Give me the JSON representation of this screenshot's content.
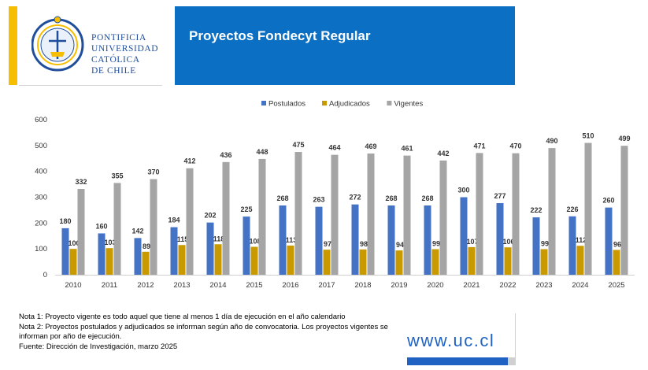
{
  "header": {
    "logo_lines": [
      "PONTIFICIA",
      "UNIVERSIDAD",
      "CATÓLICA",
      "DE CHILE"
    ],
    "title": "Proyectos Fondecyt Regular"
  },
  "chart_data": {
    "type": "bar",
    "title": "",
    "xlabel": "",
    "ylabel": "",
    "ylim": [
      0,
      600
    ],
    "yticks": [
      0,
      100,
      200,
      300,
      400,
      500,
      600
    ],
    "legend_position": "top-center",
    "categories": [
      "2010",
      "2011",
      "2012",
      "2013",
      "2014",
      "2015",
      "2016",
      "2017",
      "2018",
      "2019",
      "2020",
      "2021",
      "2022",
      "2023",
      "2024",
      "2025"
    ],
    "series": [
      {
        "name": "Postulados",
        "color": "#4472c4",
        "values": [
          180,
          160,
          142,
          184,
          202,
          225,
          268,
          263,
          272,
          268,
          268,
          300,
          277,
          222,
          226,
          260
        ]
      },
      {
        "name": "Adjudicados",
        "color": "#c99a00",
        "values": [
          100,
          103,
          89,
          115,
          118,
          108,
          113,
          97,
          98,
          94,
          99,
          107,
          106,
          99,
          112,
          96
        ]
      },
      {
        "name": "Vigentes",
        "color": "#a5a5a5",
        "values": [
          332,
          355,
          370,
          412,
          436,
          448,
          475,
          464,
          469,
          461,
          442,
          471,
          470,
          490,
          510,
          499
        ]
      }
    ]
  },
  "notes": [
    "Nota 1: Proyecto vigente es todo aquel que tiene al menos 1 día de ejecución en el año calendario",
    "Nota 2: Proyectos postulados y adjudicados se informan según año de convocatoria. Los proyectos vigentes se informan por año de ejecución.",
    "Fuente: Dirección de Investigación, marzo 2025"
  ],
  "footer": {
    "url": "www.uc.cl",
    "accent": "#1f62c4"
  }
}
